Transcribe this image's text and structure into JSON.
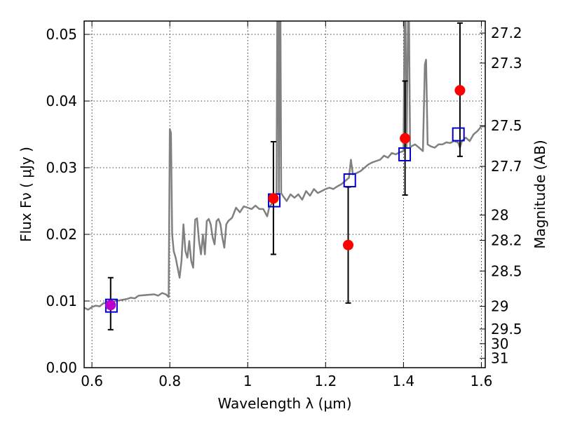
{
  "chart_data": {
    "type": "scatter",
    "xlabel": "Wavelength  λ (μm)",
    "ylabel_left": "Flux  Fν  ( μJy )",
    "ylabel_right": "Magnitude (AB)",
    "xlim": [
      0.58,
      1.61
    ],
    "ylim": [
      0.0,
      0.052
    ],
    "grid": true,
    "x_ticks": [
      {
        "value": 0.6,
        "label": "0.6"
      },
      {
        "value": 0.8,
        "label": "0.8"
      },
      {
        "value": 1.0,
        "label": "1"
      },
      {
        "value": 1.2,
        "label": "1.2"
      },
      {
        "value": 1.4,
        "label": "1.4"
      },
      {
        "value": 1.6,
        "label": "1.6"
      }
    ],
    "y_ticks": [
      {
        "value": 0.0,
        "label": "0.00"
      },
      {
        "value": 0.01,
        "label": "0.01"
      },
      {
        "value": 0.02,
        "label": "0.02"
      },
      {
        "value": 0.03,
        "label": "0.03"
      },
      {
        "value": 0.04,
        "label": "0.04"
      },
      {
        "value": 0.05,
        "label": "0.05"
      }
    ],
    "right_ticks": [
      {
        "flux": 0.0502,
        "label": "27.2"
      },
      {
        "flux": 0.0457,
        "label": "27.3"
      },
      {
        "flux": 0.0363,
        "label": "27.5"
      },
      {
        "flux": 0.0302,
        "label": "27.7"
      },
      {
        "flux": 0.0229,
        "label": "28"
      },
      {
        "flux": 0.0191,
        "label": "28.2"
      },
      {
        "flux": 0.0145,
        "label": "28.5"
      },
      {
        "flux": 0.0092,
        "label": "29"
      },
      {
        "flux": 0.0058,
        "label": "29.5"
      },
      {
        "flux": 0.0036,
        "label": "30"
      },
      {
        "flux": 0.0014,
        "label": "31"
      }
    ],
    "colors": {
      "model": "#808080",
      "observed": "#ff0000",
      "observed_overlap": "#bb00cc",
      "synthetic": "#0000cc",
      "errorbar": "#000000"
    },
    "observed": [
      {
        "x": 0.648,
        "y": 0.0094,
        "yerr_low": 0.0057,
        "yerr_high": 0.0135
      },
      {
        "x": 1.066,
        "y": 0.0254,
        "yerr_low": 0.017,
        "yerr_high": 0.0339
      },
      {
        "x": 1.258,
        "y": 0.0184,
        "yerr_low": 0.0097,
        "yerr_high": 0.0271
      },
      {
        "x": 1.404,
        "y": 0.0344,
        "yerr_low": 0.0259,
        "yerr_high": 0.043
      },
      {
        "x": 1.545,
        "y": 0.0416,
        "yerr_low": 0.0317,
        "yerr_high": 0.0517
      }
    ],
    "synthetic": [
      {
        "x": 0.65,
        "y": 0.0093
      },
      {
        "x": 1.068,
        "y": 0.0251
      },
      {
        "x": 1.262,
        "y": 0.0281
      },
      {
        "x": 1.403,
        "y": 0.032
      },
      {
        "x": 1.541,
        "y": 0.035
      }
    ],
    "model_spectrum": [
      [
        0.58,
        0.009
      ],
      [
        0.59,
        0.0087
      ],
      [
        0.6,
        0.0091
      ],
      [
        0.61,
        0.0093
      ],
      [
        0.62,
        0.0092
      ],
      [
        0.63,
        0.0097
      ],
      [
        0.64,
        0.0096
      ],
      [
        0.65,
        0.0098
      ],
      [
        0.66,
        0.01
      ],
      [
        0.67,
        0.0101
      ],
      [
        0.68,
        0.0102
      ],
      [
        0.69,
        0.0103
      ],
      [
        0.7,
        0.0105
      ],
      [
        0.71,
        0.0104
      ],
      [
        0.72,
        0.0108
      ],
      [
        0.74,
        0.0109
      ],
      [
        0.76,
        0.011
      ],
      [
        0.77,
        0.0108
      ],
      [
        0.78,
        0.0112
      ],
      [
        0.79,
        0.011
      ],
      [
        0.797,
        0.0106
      ],
      [
        0.8,
        0.0358
      ],
      [
        0.803,
        0.0352
      ],
      [
        0.806,
        0.02
      ],
      [
        0.81,
        0.0175
      ],
      [
        0.815,
        0.0165
      ],
      [
        0.82,
        0.015
      ],
      [
        0.825,
        0.0135
      ],
      [
        0.83,
        0.016
      ],
      [
        0.835,
        0.0215
      ],
      [
        0.84,
        0.0175
      ],
      [
        0.845,
        0.0165
      ],
      [
        0.85,
        0.019
      ],
      [
        0.855,
        0.016
      ],
      [
        0.86,
        0.015
      ],
      [
        0.865,
        0.0222
      ],
      [
        0.87,
        0.0224
      ],
      [
        0.875,
        0.019
      ],
      [
        0.88,
        0.017
      ],
      [
        0.885,
        0.02
      ],
      [
        0.89,
        0.017
      ],
      [
        0.895,
        0.022
      ],
      [
        0.9,
        0.0223
      ],
      [
        0.905,
        0.0215
      ],
      [
        0.91,
        0.0195
      ],
      [
        0.915,
        0.0185
      ],
      [
        0.92,
        0.022
      ],
      [
        0.925,
        0.0223
      ],
      [
        0.93,
        0.0215
      ],
      [
        0.935,
        0.0195
      ],
      [
        0.94,
        0.018
      ],
      [
        0.945,
        0.0215
      ],
      [
        0.95,
        0.022
      ],
      [
        0.96,
        0.0225
      ],
      [
        0.97,
        0.024
      ],
      [
        0.98,
        0.0233
      ],
      [
        0.99,
        0.0242
      ],
      [
        1.0,
        0.024
      ],
      [
        1.01,
        0.0238
      ],
      [
        1.02,
        0.0243
      ],
      [
        1.03,
        0.0238
      ],
      [
        1.04,
        0.0238
      ],
      [
        1.05,
        0.0227
      ],
      [
        1.055,
        0.024
      ],
      [
        1.06,
        0.0245
      ],
      [
        1.07,
        0.025
      ],
      [
        1.074,
        0.0255
      ],
      [
        1.076,
        0.053
      ],
      [
        1.078,
        0.053
      ],
      [
        1.08,
        0.026
      ],
      [
        1.082,
        0.053
      ],
      [
        1.084,
        0.053
      ],
      [
        1.086,
        0.0262
      ],
      [
        1.09,
        0.0258
      ],
      [
        1.1,
        0.025
      ],
      [
        1.11,
        0.026
      ],
      [
        1.12,
        0.0255
      ],
      [
        1.13,
        0.026
      ],
      [
        1.14,
        0.0252
      ],
      [
        1.15,
        0.0265
      ],
      [
        1.16,
        0.0258
      ],
      [
        1.17,
        0.0268
      ],
      [
        1.18,
        0.0262
      ],
      [
        1.19,
        0.0265
      ],
      [
        1.2,
        0.0268
      ],
      [
        1.21,
        0.027
      ],
      [
        1.22,
        0.0268
      ],
      [
        1.23,
        0.0272
      ],
      [
        1.24,
        0.0275
      ],
      [
        1.25,
        0.028
      ],
      [
        1.26,
        0.0285
      ],
      [
        1.265,
        0.0312
      ],
      [
        1.27,
        0.029
      ],
      [
        1.28,
        0.0292
      ],
      [
        1.29,
        0.0295
      ],
      [
        1.3,
        0.03
      ],
      [
        1.31,
        0.0305
      ],
      [
        1.32,
        0.0308
      ],
      [
        1.33,
        0.031
      ],
      [
        1.34,
        0.0312
      ],
      [
        1.35,
        0.0318
      ],
      [
        1.36,
        0.0315
      ],
      [
        1.37,
        0.0322
      ],
      [
        1.38,
        0.032
      ],
      [
        1.39,
        0.0323
      ],
      [
        1.4,
        0.0325
      ],
      [
        1.403,
        0.053
      ],
      [
        1.405,
        0.053
      ],
      [
        1.408,
        0.033
      ],
      [
        1.412,
        0.053
      ],
      [
        1.414,
        0.053
      ],
      [
        1.417,
        0.033
      ],
      [
        1.42,
        0.0332
      ],
      [
        1.43,
        0.0335
      ],
      [
        1.44,
        0.033
      ],
      [
        1.45,
        0.0325
      ],
      [
        1.455,
        0.0455
      ],
      [
        1.458,
        0.0462
      ],
      [
        1.462,
        0.0335
      ],
      [
        1.47,
        0.0332
      ],
      [
        1.48,
        0.033
      ],
      [
        1.49,
        0.0335
      ],
      [
        1.5,
        0.0335
      ],
      [
        1.51,
        0.0338
      ],
      [
        1.52,
        0.0337
      ],
      [
        1.53,
        0.034
      ],
      [
        1.54,
        0.0338
      ],
      [
        1.545,
        0.033
      ],
      [
        1.55,
        0.034
      ],
      [
        1.56,
        0.0345
      ],
      [
        1.57,
        0.034
      ],
      [
        1.58,
        0.035
      ],
      [
        1.59,
        0.0355
      ],
      [
        1.6,
        0.0362
      ],
      [
        1.61,
        0.0362
      ]
    ]
  }
}
